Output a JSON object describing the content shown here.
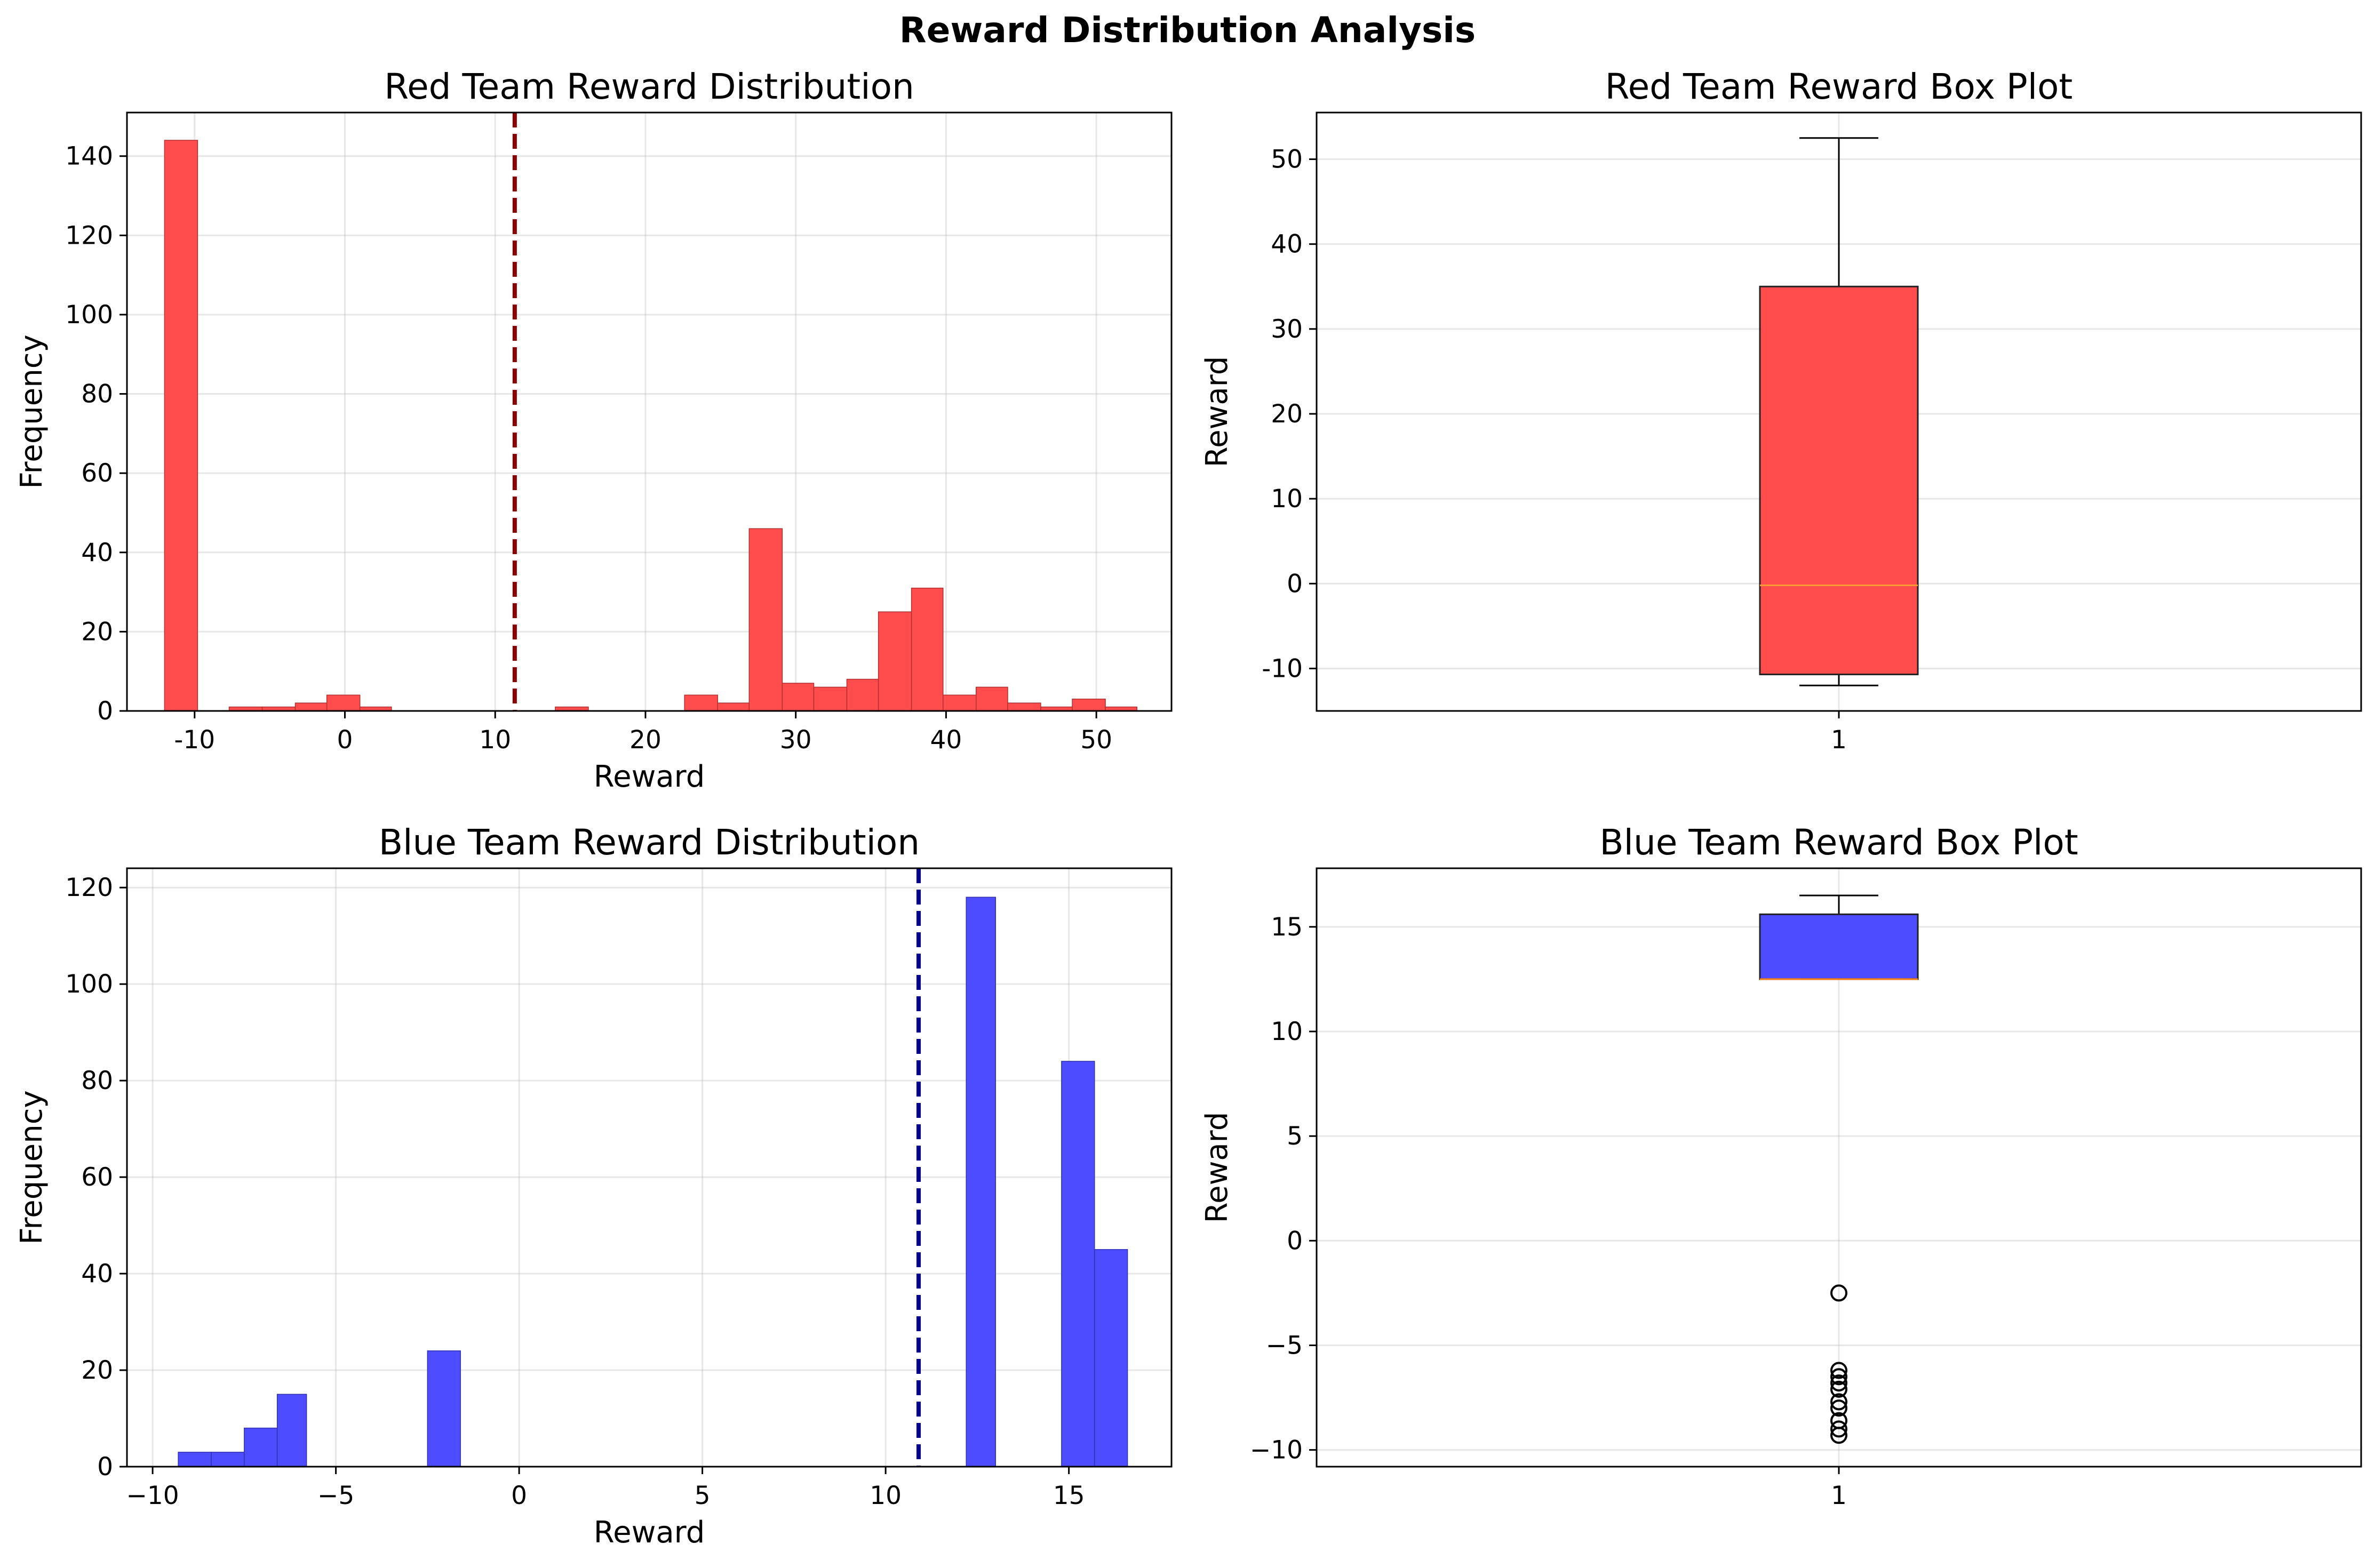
{
  "figure": {
    "suptitle": "Reward Distribution Analysis"
  },
  "chart_data": [
    {
      "type": "histogram",
      "title": "Red Team Reward Distribution",
      "xlabel": "Reward",
      "ylabel": "Frequency",
      "xlim": [
        -14.5,
        55
      ],
      "ylim": [
        0,
        151
      ],
      "xticks": [
        -10,
        0,
        10,
        20,
        30,
        40,
        50
      ],
      "yticks": [
        0,
        20,
        40,
        60,
        80,
        100,
        120,
        140
      ],
      "grid": true,
      "color": "#ff4d4d",
      "edge_color": "#b03030",
      "bins": [
        {
          "x0": -12.0,
          "x1": -9.8,
          "count": 144
        },
        {
          "x0": -7.7,
          "x1": -5.5,
          "count": 1
        },
        {
          "x0": -5.5,
          "x1": -3.3,
          "count": 1
        },
        {
          "x0": -3.3,
          "x1": -1.2,
          "count": 2
        },
        {
          "x0": -1.2,
          "x1": 1.0,
          "count": 4
        },
        {
          "x0": 1.0,
          "x1": 3.1,
          "count": 1
        },
        {
          "x0": 14.0,
          "x1": 16.2,
          "count": 1
        },
        {
          "x0": 22.6,
          "x1": 24.8,
          "count": 4
        },
        {
          "x0": 24.8,
          "x1": 26.9,
          "count": 2
        },
        {
          "x0": 26.9,
          "x1": 29.1,
          "count": 46
        },
        {
          "x0": 29.1,
          "x1": 31.2,
          "count": 7
        },
        {
          "x0": 31.2,
          "x1": 33.4,
          "count": 6
        },
        {
          "x0": 33.4,
          "x1": 35.5,
          "count": 8
        },
        {
          "x0": 35.5,
          "x1": 37.7,
          "count": 25
        },
        {
          "x0": 37.7,
          "x1": 39.8,
          "count": 31
        },
        {
          "x0": 39.8,
          "x1": 42.0,
          "count": 4
        },
        {
          "x0": 42.0,
          "x1": 44.1,
          "count": 6
        },
        {
          "x0": 44.1,
          "x1": 46.3,
          "count": 2
        },
        {
          "x0": 46.3,
          "x1": 48.4,
          "count": 1
        },
        {
          "x0": 48.4,
          "x1": 50.6,
          "count": 3
        },
        {
          "x0": 50.6,
          "x1": 52.7,
          "count": 1
        }
      ],
      "mean_line": {
        "x": 11.3,
        "color": "#8b0000"
      }
    },
    {
      "type": "box",
      "title": "Red Team Reward Box Plot",
      "xlabel": "",
      "ylabel": "Reward",
      "ylim": [
        -15,
        55.5
      ],
      "yticks": [
        -10,
        0,
        10,
        20,
        30,
        40,
        50
      ],
      "xticks": [
        "1"
      ],
      "grid": true,
      "box_color": "#ff4d4d",
      "median_color": "#ff9933",
      "box": {
        "whisker_low": -12,
        "q1": -10.7,
        "median": -0.2,
        "q3": 35.0,
        "whisker_high": 52.5
      },
      "outliers": []
    },
    {
      "type": "histogram",
      "title": "Blue Team Reward Distribution",
      "xlabel": "Reward",
      "ylabel": "Frequency",
      "xlim": [
        -10.7,
        17.8
      ],
      "ylim": [
        0,
        124
      ],
      "xticks": [
        -10,
        -5,
        0,
        5,
        10,
        15
      ],
      "xtick_labels": [
        "−10",
        "−5",
        "0",
        "5",
        "10",
        "15"
      ],
      "yticks": [
        0,
        20,
        40,
        60,
        80,
        100,
        120
      ],
      "grid": true,
      "color": "#4d4dff",
      "edge_color": "#3030b0",
      "bins": [
        {
          "x0": -9.3,
          "x1": -8.4,
          "count": 3
        },
        {
          "x0": -8.4,
          "x1": -7.5,
          "count": 3
        },
        {
          "x0": -7.5,
          "x1": -6.6,
          "count": 8
        },
        {
          "x0": -6.6,
          "x1": -5.8,
          "count": 15
        },
        {
          "x0": -2.5,
          "x1": -1.6,
          "count": 24
        },
        {
          "x0": 12.2,
          "x1": 13.0,
          "count": 118
        },
        {
          "x0": 14.8,
          "x1": 15.7,
          "count": 84
        },
        {
          "x0": 15.7,
          "x1": 16.6,
          "count": 45
        }
      ],
      "mean_line": {
        "x": 10.9,
        "color": "#00008b"
      }
    },
    {
      "type": "box",
      "title": "Blue Team Reward Box Plot",
      "xlabel": "",
      "ylabel": "Reward",
      "ylim": [
        -10.8,
        17.8
      ],
      "yticks": [
        -10,
        -5,
        0,
        5,
        10,
        15
      ],
      "ytick_labels": [
        "−10",
        "−5",
        "0",
        "5",
        "10",
        "15"
      ],
      "xticks": [
        "1"
      ],
      "grid": true,
      "box_color": "#4d4dff",
      "median_color": "#ff7f0e",
      "box": {
        "whisker_low": 12.5,
        "q1": 12.5,
        "median": 12.5,
        "q3": 15.6,
        "whisker_high": 16.5
      },
      "outliers": [
        -2.5,
        -6.2,
        -6.5,
        -6.8,
        -7.1,
        -7.7,
        -8.0,
        -8.6,
        -9.0,
        -9.3
      ]
    }
  ]
}
